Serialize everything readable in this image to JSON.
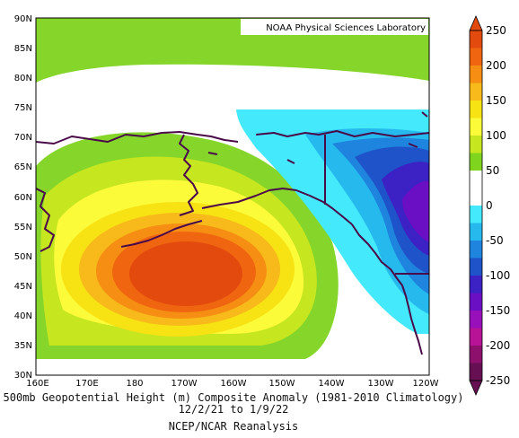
{
  "header": {
    "lab_label": "NOAA Physical Sciences Laboratory"
  },
  "caption": {
    "line1": "500mb Geopotential Height (m) Composite Anomaly (1981-2010 Climatology)",
    "line2": "12/2/21 to 1/9/22",
    "line3": "NCEP/NCAR Reanalysis"
  },
  "map": {
    "lat_labels": [
      "90N",
      "85N",
      "80N",
      "75N",
      "70N",
      "65N",
      "60N",
      "55N",
      "50N",
      "45N",
      "40N",
      "35N",
      "30N"
    ],
    "lon_labels": [
      "160E",
      "170E",
      "180",
      "170W",
      "160W",
      "150W",
      "140W",
      "130W",
      "120W"
    ],
    "coastline_color": "#4a0a4a"
  },
  "colorbar": {
    "labels": [
      "250",
      "200",
      "150",
      "100",
      "50",
      "0",
      "-50",
      "-100",
      "-150",
      "-200",
      "-250"
    ],
    "colors": [
      "#e34a0e",
      "#f06510",
      "#f58e12",
      "#f7ba1a",
      "#f7e213",
      "#fbfb3a",
      "#c6e620",
      "#7fd41d",
      "#ffffff",
      "#ffffff",
      "#44e9fc",
      "#26b9ee",
      "#1e84dd",
      "#1f53c9",
      "#3c21c4",
      "#6a0fc4",
      "#9810b9",
      "#b81296",
      "#8d106d",
      "#661053"
    ]
  }
}
